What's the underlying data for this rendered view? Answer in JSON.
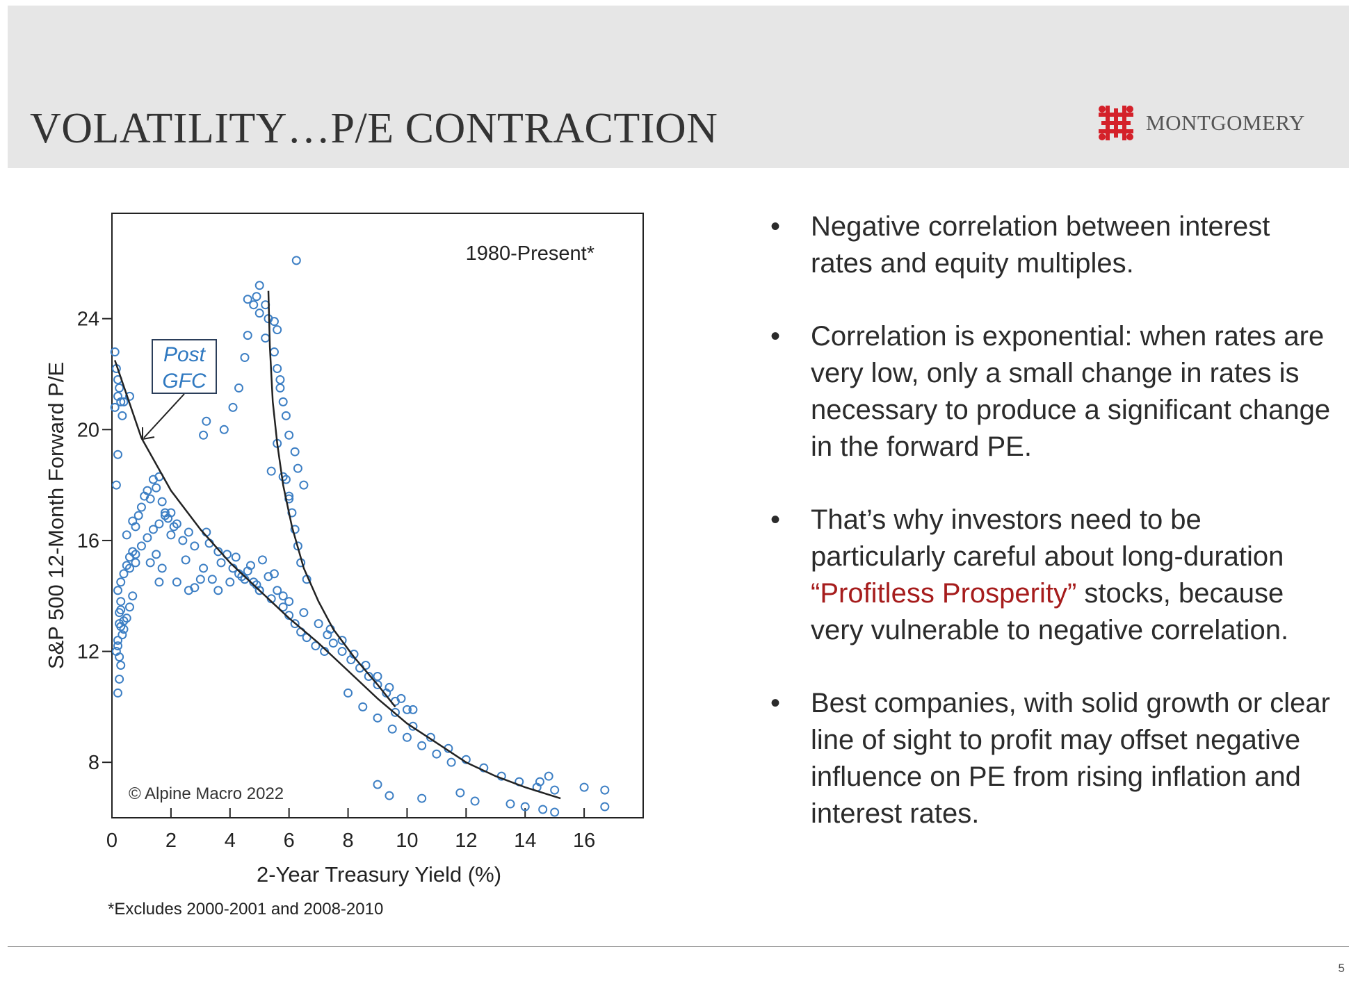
{
  "header": {
    "title": "VOLATILITY…P/E CONTRACTION",
    "logo_text": "MONTGOMERY",
    "brand_color": "#d4212a"
  },
  "bullets": [
    {
      "text": "Negative correlation between interest rates and equity multiples."
    },
    {
      "text": "Correlation is exponential: when rates are very low, only a small change in rates is necessary to produce a significant change in the forward PE."
    },
    {
      "pre": "That’s why investors need to be particularly careful about long-duration ",
      "highlight": "“Profitless Prosperity”",
      "post": " stocks, because very vulnerable to negative correlation."
    },
    {
      "text": "Best companies, with solid growth or clear line of sight to profit may offset negative influence on PE from rising inflation and interest rates."
    }
  ],
  "bullet_char": "•",
  "highlight_color": "#a61c1c",
  "page_number": "5",
  "chart_data": {
    "type": "scatter",
    "title": "1980-Present*",
    "xlabel": "2-Year Treasury Yield (%)",
    "ylabel": "S&P 500 12-Month Forward P/E",
    "xlim": [
      0,
      18
    ],
    "ylim": [
      6,
      27.8
    ],
    "xticks": [
      0,
      2,
      4,
      6,
      8,
      10,
      12,
      14,
      16
    ],
    "yticks": [
      8,
      12,
      16,
      20,
      24
    ],
    "grid": false,
    "credit": "© Alpine Macro 2022",
    "footnote": "*Excludes 2000-2001 and 2008-2010",
    "annotation": {
      "lines": [
        "Post",
        "GFC"
      ],
      "color": "#2e78c0",
      "box_color": "#2b3e5a"
    },
    "marker_color": "#3d7fc4",
    "series": [
      {
        "x": [
          0.1,
          0.15,
          0.2,
          0.25,
          0.3,
          0.1,
          0.2,
          0.35,
          0.4,
          0.6,
          0.2,
          0.15,
          0.5,
          0.7,
          0.8,
          0.9,
          1.0,
          1.1,
          1.2,
          1.3,
          1.4,
          1.5,
          1.6,
          1.7,
          1.8,
          1.9,
          2.0,
          2.1,
          0.6,
          0.8,
          1.0,
          1.2,
          1.4,
          1.6,
          1.8,
          2.0,
          2.2,
          2.4,
          2.6,
          2.8,
          1.3,
          1.5,
          1.7,
          2.2,
          2.6,
          0.3,
          0.4,
          0.5,
          0.6,
          0.7,
          0.8,
          0.3,
          0.25,
          0.35,
          0.2,
          0.15,
          0.3,
          0.4,
          0.5,
          0.6,
          0.7,
          0.25,
          0.2,
          0.3,
          0.2,
          0.25,
          0.3,
          0.2,
          0.25,
          0.4,
          1.6,
          2.5,
          3.1,
          3.0,
          2.8,
          3.2,
          3.3,
          3.6,
          3.7,
          3.9,
          4.1,
          4.3,
          4.5,
          4.7,
          4.9,
          5.1,
          5.3,
          4.2,
          4.6,
          5.0,
          5.5,
          5.8,
          3.4,
          3.6,
          4.0,
          4.4,
          4.8,
          5.0,
          5.4,
          5.8,
          6.0,
          6.2,
          6.4,
          6.6,
          6.9,
          7.2,
          5.6,
          6.0,
          6.5,
          7.0,
          7.3,
          7.5,
          7.8,
          8.1,
          8.4,
          8.7,
          9.0,
          9.3,
          9.6,
          10.0,
          7.4,
          7.8,
          8.2,
          8.6,
          9.0,
          9.4,
          9.8,
          10.2,
          8.0,
          8.5,
          9.0,
          9.5,
          10.0,
          10.5,
          11.0,
          11.5,
          9.6,
          10.2,
          10.8,
          11.4,
          12.0,
          12.6,
          13.2,
          13.8,
          14.4,
          15.0,
          9.0,
          9.4,
          10.5,
          11.8,
          12.3,
          13.5,
          14.0,
          14.6,
          15.0,
          16.0,
          16.7,
          16.7,
          14.8,
          14.5,
          4.6,
          4.8,
          5.0,
          5.3,
          5.6,
          5.2,
          5.5,
          5.6,
          5.7,
          5.7,
          5.8,
          5.9,
          6.0,
          6.2,
          6.3,
          6.5,
          5.9,
          6.0,
          6.1,
          6.2,
          6.3,
          6.4,
          6.6,
          3.2,
          3.1,
          3.8,
          4.1,
          4.3,
          4.5,
          4.6,
          4.9,
          5.0,
          5.2,
          5.5,
          6.25,
          5.4,
          5.6,
          5.8,
          6.0
        ],
        "y": [
          22.8,
          22.2,
          21.8,
          21.5,
          21.0,
          20.8,
          21.2,
          20.5,
          21.0,
          21.2,
          19.1,
          18.0,
          16.2,
          16.7,
          16.5,
          16.9,
          17.2,
          17.6,
          17.8,
          17.5,
          18.2,
          17.9,
          18.3,
          17.4,
          17.0,
          16.8,
          16.2,
          16.5,
          15.0,
          15.5,
          15.8,
          16.1,
          16.4,
          16.6,
          16.9,
          17.0,
          16.6,
          16.0,
          16.3,
          15.8,
          15.2,
          15.5,
          15.0,
          14.5,
          14.2,
          14.5,
          14.8,
          15.1,
          15.4,
          15.6,
          15.2,
          13.5,
          13.0,
          12.6,
          12.2,
          12.0,
          11.5,
          12.8,
          13.2,
          13.6,
          14.0,
          11.0,
          10.5,
          13.8,
          14.2,
          13.4,
          12.9,
          12.4,
          11.8,
          13.1,
          14.5,
          15.3,
          15.0,
          14.6,
          14.3,
          16.3,
          15.9,
          15.6,
          15.2,
          15.5,
          15.0,
          14.8,
          14.6,
          15.1,
          14.4,
          15.3,
          14.7,
          15.4,
          14.9,
          14.2,
          14.8,
          14.0,
          14.6,
          14.2,
          14.5,
          14.7,
          14.5,
          14.2,
          13.9,
          13.6,
          13.3,
          13.0,
          12.7,
          12.5,
          12.2,
          12.0,
          14.2,
          13.8,
          13.4,
          13.0,
          12.6,
          12.3,
          12.0,
          11.7,
          11.4,
          11.1,
          10.8,
          10.5,
          10.2,
          9.9,
          12.8,
          12.4,
          11.9,
          11.5,
          11.1,
          10.7,
          10.3,
          9.9,
          10.5,
          10.0,
          9.6,
          9.2,
          8.9,
          8.6,
          8.3,
          8.0,
          9.8,
          9.3,
          8.9,
          8.5,
          8.1,
          7.8,
          7.5,
          7.3,
          7.1,
          7.0,
          7.2,
          6.8,
          6.7,
          6.9,
          6.6,
          6.5,
          6.4,
          6.3,
          6.2,
          7.1,
          7.0,
          6.4,
          7.5,
          7.3,
          24.7,
          24.5,
          24.2,
          24.0,
          23.6,
          23.3,
          22.8,
          22.2,
          21.8,
          21.5,
          21.0,
          20.5,
          19.8,
          19.2,
          18.6,
          18.0,
          18.2,
          17.6,
          17.0,
          16.4,
          15.8,
          15.2,
          14.6,
          20.3,
          19.8,
          20.0,
          20.8,
          21.5,
          22.6,
          23.4,
          24.8,
          25.2,
          24.5,
          23.9,
          26.1,
          18.5,
          19.5,
          18.3,
          17.5
        ]
      }
    ],
    "fit_curves": [
      {
        "x": [
          0.1,
          1,
          2,
          3,
          4,
          5,
          6,
          7,
          8,
          9,
          10,
          11,
          12,
          13,
          14,
          15.2
        ],
        "y": [
          22.5,
          19.7,
          17.8,
          16.4,
          15.2,
          14.2,
          13.2,
          12.3,
          11.3,
          10.3,
          9.4,
          8.7,
          8.0,
          7.5,
          7.1,
          6.7
        ]
      },
      {
        "x": [
          5.3,
          5.35,
          5.45,
          5.6,
          5.8,
          6.1,
          6.5,
          7.0,
          7.5,
          8.2,
          9.0,
          9.6
        ],
        "y": [
          25.0,
          23.0,
          21.0,
          19.5,
          18.0,
          16.5,
          15.0,
          13.8,
          12.8,
          11.8,
          10.8,
          10.0
        ]
      }
    ]
  }
}
